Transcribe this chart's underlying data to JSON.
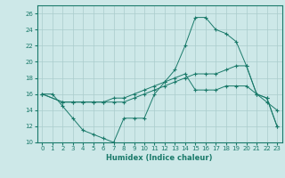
{
  "xlabel": "Humidex (Indice chaleur)",
  "bg_color": "#cde8e8",
  "grid_color": "#aacccc",
  "line_color": "#1a7a6a",
  "xlim": [
    -0.5,
    23.5
  ],
  "ylim": [
    10,
    27
  ],
  "xticks": [
    0,
    1,
    2,
    3,
    4,
    5,
    6,
    7,
    8,
    9,
    10,
    11,
    12,
    13,
    14,
    15,
    16,
    17,
    18,
    19,
    20,
    21,
    22,
    23
  ],
  "yticks": [
    10,
    12,
    14,
    16,
    18,
    20,
    22,
    24,
    26
  ],
  "line1_x": [
    0,
    1,
    2,
    3,
    4,
    5,
    6,
    7,
    8,
    9,
    10,
    11,
    12,
    13,
    14,
    15,
    16,
    17,
    18,
    19,
    20,
    21,
    22,
    23
  ],
  "line1_y": [
    16,
    16,
    14.5,
    13,
    11.5,
    11,
    10.5,
    10,
    13,
    13,
    13,
    16,
    17.5,
    19,
    22,
    25.5,
    25.5,
    24,
    23.5,
    22.5,
    19.5,
    16,
    15,
    14
  ],
  "line2_x": [
    0,
    2,
    3,
    4,
    5,
    6,
    7,
    8,
    9,
    10,
    11,
    12,
    13,
    14,
    15,
    16,
    17,
    18,
    19,
    20,
    21,
    22,
    23
  ],
  "line2_y": [
    16,
    15,
    15,
    15,
    15,
    15,
    15,
    15,
    15.5,
    16,
    16.5,
    17,
    17.5,
    18,
    18.5,
    18.5,
    18.5,
    19,
    19.5,
    19.5,
    16,
    15.5,
    12
  ],
  "line3_x": [
    0,
    2,
    3,
    4,
    5,
    6,
    7,
    8,
    9,
    10,
    11,
    12,
    13,
    14,
    15,
    16,
    17,
    18,
    19,
    20,
    21,
    22,
    23
  ],
  "line3_y": [
    16,
    15,
    15,
    15,
    15,
    15,
    15.5,
    15.5,
    16,
    16.5,
    17,
    17.5,
    18,
    18.5,
    16.5,
    16.5,
    16.5,
    17,
    17,
    17,
    16,
    15.5,
    12
  ]
}
